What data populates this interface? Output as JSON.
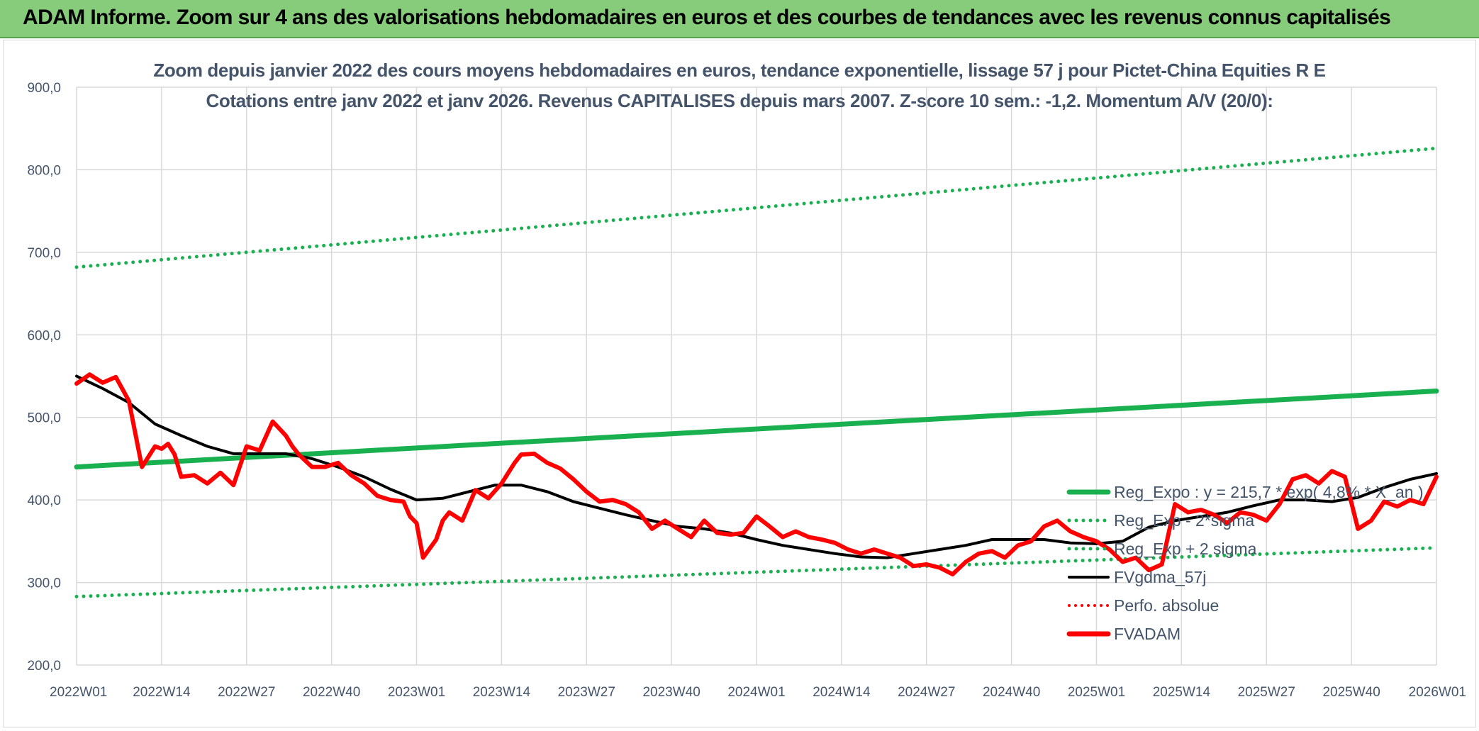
{
  "header": {
    "title": "ADAM Informe. Zoom sur 4 ans des valorisations hebdomadaires en euros et des courbes de tendances avec les revenus connus capitalisés"
  },
  "colors": {
    "banner": "#86cc7b",
    "reg_green": "#19b050",
    "price_red": "#ff0000",
    "fvgdma_black": "#000000",
    "text": "#44546a"
  },
  "chart_data": {
    "type": "line",
    "title": "Zoom depuis janvier 2022 des cours moyens hebdomadaires en euros, tendance exponentielle, lissage 57 j pour Pictet-China Equities R E",
    "subtitle": "Cotations entre janv 2022 et janv 2026. Revenus CAPITALISES depuis mars 2007. Z-score 10 sem.: -1,2. Momentum A/V (20/0):",
    "xlabel": "",
    "ylabel": "",
    "ylim": [
      200,
      900
    ],
    "yticks": [
      "200,0",
      "300,0",
      "400,0",
      "500,0",
      "600,0",
      "700,0",
      "800,0",
      "900,0"
    ],
    "xticks": [
      "2022W01",
      "2022W14",
      "2022W27",
      "2022W40",
      "2023W01",
      "2023W14",
      "2023W27",
      "2023W40",
      "2024W01",
      "2024W14",
      "2024W27",
      "2024W40",
      "2025W01",
      "2025W14",
      "2025W27",
      "2025W40",
      "2026W01"
    ],
    "grid": true,
    "legend_position": "right",
    "series": [
      {
        "name": "Reg_Expo : y = 215,7 * exp( 4,8% *  X_an )",
        "style": "solid-green-thick",
        "x": [
          0,
          208
        ],
        "y": [
          440,
          532
        ]
      },
      {
        "name": "Reg_Exp - 2*sigma",
        "style": "dotted-green",
        "x": [
          0,
          208
        ],
        "y": [
          283,
          342
        ]
      },
      {
        "name": "Reg_Exp + 2 sigma",
        "style": "dotted-green",
        "x": [
          0,
          208
        ],
        "y": [
          682,
          826
        ]
      },
      {
        "name": "FVgdma_57j",
        "style": "solid-black",
        "x": [
          0,
          4,
          8,
          12,
          16,
          20,
          24,
          28,
          32,
          36,
          40,
          44,
          48,
          52,
          56,
          60,
          64,
          68,
          72,
          76,
          80,
          84,
          88,
          92,
          96,
          100,
          104,
          108,
          112,
          116,
          120,
          124,
          128,
          132,
          136,
          140,
          144,
          148,
          152,
          156,
          160,
          164,
          168,
          172,
          176,
          180,
          184,
          188,
          192,
          196,
          200,
          204,
          208
        ],
        "y": [
          550,
          535,
          518,
          492,
          478,
          465,
          456,
          456,
          456,
          450,
          440,
          428,
          413,
          400,
          402,
          410,
          418,
          418,
          410,
          398,
          390,
          382,
          375,
          368,
          365,
          360,
          352,
          345,
          340,
          335,
          331,
          330,
          335,
          340,
          345,
          352,
          352,
          352,
          348,
          347,
          350,
          367,
          375,
          380,
          385,
          393,
          400,
          400,
          398,
          403,
          415,
          425,
          432
        ]
      },
      {
        "name": "Perfo. absolue",
        "style": "dotted-red",
        "x": [],
        "y": []
      },
      {
        "name": "FVADAM",
        "style": "solid-red-thick",
        "x": [
          0,
          2,
          4,
          6,
          8,
          10,
          12,
          13,
          14,
          15,
          16,
          18,
          20,
          22,
          24,
          26,
          28,
          30,
          32,
          33,
          34,
          36,
          38,
          40,
          42,
          44,
          46,
          48,
          50,
          51,
          52,
          53,
          55,
          56,
          57,
          59,
          61,
          63,
          65,
          67,
          68,
          70,
          72,
          74,
          76,
          78,
          80,
          82,
          84,
          86,
          88,
          90,
          92,
          94,
          96,
          98,
          100,
          102,
          104,
          106,
          108,
          110,
          112,
          114,
          116,
          118,
          120,
          122,
          124,
          126,
          128,
          130,
          132,
          134,
          136,
          138,
          140,
          142,
          144,
          146,
          148,
          150,
          152,
          154,
          156,
          158,
          160,
          162,
          164,
          166,
          168,
          170,
          172,
          174,
          176,
          178,
          180,
          182,
          184,
          186,
          188,
          190,
          192,
          194,
          196,
          198,
          200,
          202,
          204,
          206,
          208
        ],
        "y": [
          541,
          552,
          542,
          549,
          520,
          440,
          465,
          462,
          468,
          455,
          428,
          430,
          420,
          433,
          418,
          465,
          460,
          495,
          478,
          465,
          455,
          440,
          440,
          445,
          430,
          420,
          405,
          400,
          398,
          380,
          372,
          330,
          352,
          375,
          385,
          375,
          412,
          402,
          420,
          445,
          455,
          456,
          445,
          438,
          425,
          410,
          398,
          400,
          395,
          385,
          365,
          375,
          365,
          355,
          375,
          360,
          358,
          360,
          380,
          368,
          355,
          362,
          355,
          352,
          348,
          340,
          335,
          340,
          335,
          330,
          320,
          322,
          318,
          310,
          325,
          335,
          338,
          330,
          345,
          350,
          368,
          375,
          362,
          355,
          350,
          340,
          325,
          330,
          315,
          322,
          395,
          385,
          388,
          382,
          372,
          385,
          382,
          375,
          395,
          425,
          430,
          420,
          435,
          428,
          365,
          375,
          398,
          392,
          400,
          395,
          428
        ]
      }
    ]
  }
}
